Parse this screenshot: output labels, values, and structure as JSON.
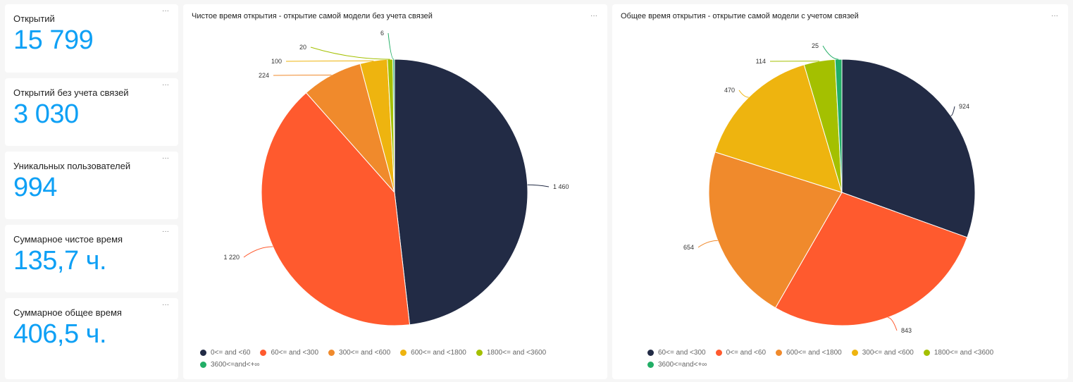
{
  "kpis": [
    {
      "title": "Открытий",
      "value": "15 799"
    },
    {
      "title": "Открытий без учета связей",
      "value": "3 030"
    },
    {
      "title": "Уникальных пользователей",
      "value": "994"
    },
    {
      "title": "Суммарное чистое время",
      "value": "135,7 ч."
    },
    {
      "title": "Суммарное общее время",
      "value": "406,5 ч."
    }
  ],
  "menu_icon": "ellipsis-icon",
  "menu_glyph": "···",
  "colors": {
    "navy": "#222b45",
    "red": "#ff5a2e",
    "orange": "#f08a2c",
    "yellow": "#eeb40f",
    "lime": "#a4c000",
    "green": "#22ae66",
    "kpi_value": "#0ea0f5"
  },
  "chart_data": [
    {
      "type": "pie",
      "title": "Чистое время открытия - открытие самой модели без учета связей",
      "legend_position": "bottom",
      "slices": [
        {
          "label": "0<= and <60",
          "value": 1460,
          "display": "1 460",
          "color": "#222b45"
        },
        {
          "label": "60<= and <300",
          "value": 1220,
          "display": "1 220",
          "color": "#ff5a2e"
        },
        {
          "label": "300<= and <600",
          "value": 224,
          "display": "224",
          "color": "#f08a2c"
        },
        {
          "label": "600<= and <1800",
          "value": 100,
          "display": "100",
          "color": "#eeb40f"
        },
        {
          "label": "1800<= and <3600",
          "value": 20,
          "display": "20",
          "color": "#a4c000"
        },
        {
          "label": "3600<=and<+∞",
          "value": 6,
          "display": "6",
          "color": "#22ae66"
        }
      ]
    },
    {
      "type": "pie",
      "title": "Общее время открытия - открытие самой модели с учетом связей",
      "legend_position": "bottom",
      "slices": [
        {
          "label": "60<= and <300",
          "value": 924,
          "display": "924",
          "color": "#222b45"
        },
        {
          "label": "0<= and <60",
          "value": 843,
          "display": "843",
          "color": "#ff5a2e"
        },
        {
          "label": "600<= and <1800",
          "value": 654,
          "display": "654",
          "color": "#f08a2c"
        },
        {
          "label": "300<= and <600",
          "value": 470,
          "display": "470",
          "color": "#eeb40f"
        },
        {
          "label": "1800<= and <3600",
          "value": 114,
          "display": "114",
          "color": "#a4c000"
        },
        {
          "label": "3600<=and<+∞",
          "value": 25,
          "display": "25",
          "color": "#22ae66"
        }
      ]
    }
  ]
}
